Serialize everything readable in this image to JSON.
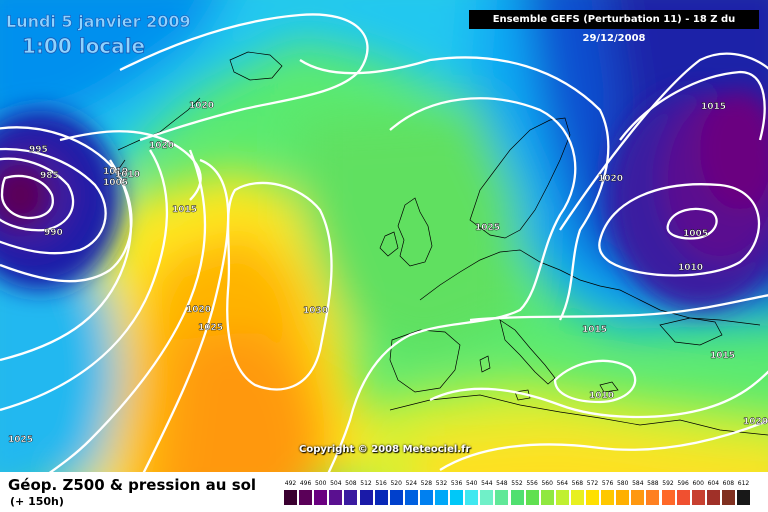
{
  "title": {
    "date": "Lundi 5 janvier 2009",
    "time": "1:00 locale"
  },
  "model_label": "Ensemble GEFS (Perturbation 11)  - 18 Z du 29/12/2008",
  "product": "Géop. Z500 & pression au sol",
  "lead_time": "(+ 150h)",
  "copyright": "Copyright © 2008 Meteociel.fr",
  "isobar_labels": [
    "1020",
    "1020",
    "995",
    "985",
    "990",
    "1010",
    "1010",
    "1005",
    "1015",
    "1020",
    "1025",
    "1030",
    "1025",
    "1020",
    "1015",
    "1005",
    "1010",
    "1015",
    "1015",
    "1010",
    "1020",
    "1025"
  ],
  "scale": {
    "values": [
      "492",
      "496",
      "500",
      "504",
      "508",
      "512",
      "516",
      "520",
      "524",
      "528",
      "532",
      "536",
      "540",
      "544",
      "548",
      "552",
      "556",
      "560",
      "564",
      "568",
      "572",
      "576",
      "580",
      "584",
      "588",
      "592",
      "596",
      "600",
      "604",
      "608",
      "612"
    ],
    "colors": [
      "#3a0030",
      "#5a0058",
      "#6a0080",
      "#5a1090",
      "#3a1aa0",
      "#1a1aa8",
      "#0828b8",
      "#0040cc",
      "#0060e0",
      "#0080f0",
      "#00a8f8",
      "#00c8f8",
      "#40e8f0",
      "#70f0c8",
      "#60e898",
      "#50e070",
      "#60e050",
      "#90e840",
      "#c0f030",
      "#e8f020",
      "#ffe000",
      "#ffc800",
      "#ffb000",
      "#ff9810",
      "#ff8020",
      "#ff6828",
      "#f05030",
      "#c84030",
      "#a03028",
      "#803020",
      "#181818"
    ]
  }
}
